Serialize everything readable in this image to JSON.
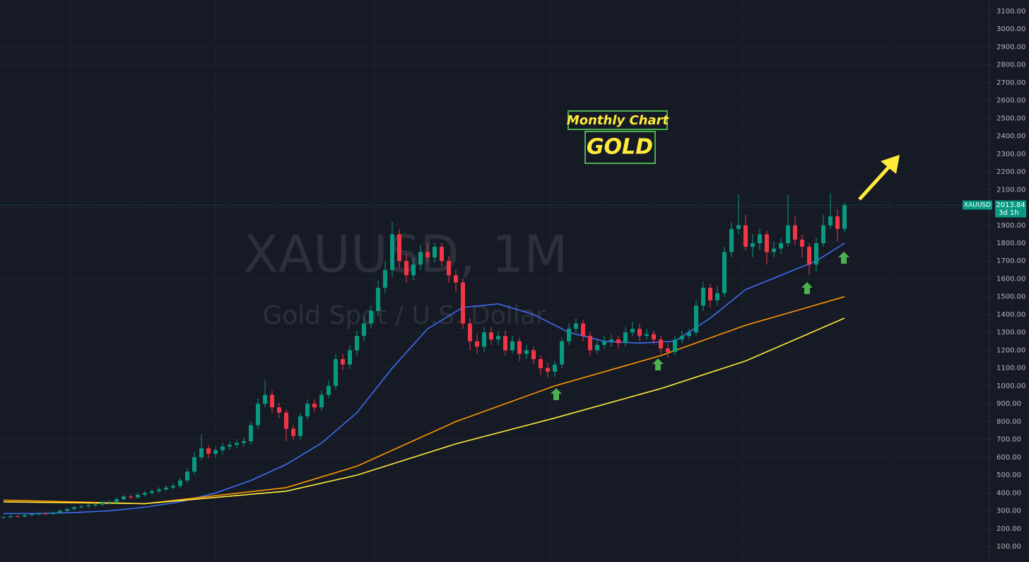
{
  "chart_data": {
    "type": "candlestick",
    "title": "XAUUSD, 1M",
    "subtitle": "Gold Spot / U.S. Dollar",
    "symbol": "XAUUSD",
    "countdown": "3d 1h",
    "annotations": [
      "Monthly Chart",
      "GOLD"
    ],
    "up_color": "#089981",
    "down_color": "#f23645",
    "grid": true,
    "xlim": [
      -0.5,
      139.5
    ],
    "ylim": [
      13,
      3163
    ],
    "yticks": [
      {
        "value": 100,
        "label": "100.00"
      },
      {
        "value": 200,
        "label": "200.00"
      },
      {
        "value": 300,
        "label": "300.00"
      },
      {
        "value": 400,
        "label": "400.00"
      },
      {
        "value": 500,
        "label": "500.00"
      },
      {
        "value": 600,
        "label": "600.00"
      },
      {
        "value": 700,
        "label": "700.00"
      },
      {
        "value": 800,
        "label": "800.00"
      },
      {
        "value": 900,
        "label": "900.00"
      },
      {
        "value": 1000,
        "label": "1000.00"
      },
      {
        "value": 1100,
        "label": "1100.00"
      },
      {
        "value": 1200,
        "label": "1200.00"
      },
      {
        "value": 1300,
        "label": "1300.00"
      },
      {
        "value": 1400,
        "label": "1400.00"
      },
      {
        "value": 1500,
        "label": "1500.00"
      },
      {
        "value": 1600,
        "label": "1600.00"
      },
      {
        "value": 1700,
        "label": "1700.00"
      },
      {
        "value": 1800,
        "label": "1800.00"
      },
      {
        "value": 1900,
        "label": "1900.00"
      },
      {
        "value": 2000,
        "label": "2000.00"
      },
      {
        "value": 2100,
        "label": "2100.00"
      },
      {
        "value": 2200,
        "label": "2200.00"
      },
      {
        "value": 2300,
        "label": "2300.00"
      },
      {
        "value": 2400,
        "label": "2400.00"
      },
      {
        "value": 2500,
        "label": "2500.00"
      },
      {
        "value": 2600,
        "label": "2600.00"
      },
      {
        "value": 2700,
        "label": "2700.00"
      },
      {
        "value": 2800,
        "label": "2800.00"
      },
      {
        "value": 2900,
        "label": "2900.00"
      },
      {
        "value": 3000,
        "label": "3000.00"
      },
      {
        "value": 3100,
        "label": "3100.00"
      }
    ],
    "candles": [
      [
        262,
        270,
        255,
        265
      ],
      [
        265,
        276,
        260,
        270
      ],
      [
        270,
        275,
        262,
        268
      ],
      [
        268,
        282,
        263,
        275
      ],
      [
        275,
        288,
        270,
        280
      ],
      [
        280,
        292,
        274,
        285
      ],
      [
        285,
        292,
        276,
        283
      ],
      [
        283,
        297,
        278,
        290
      ],
      [
        290,
        308,
        284,
        300
      ],
      [
        300,
        318,
        294,
        310
      ],
      [
        310,
        328,
        303,
        320
      ],
      [
        320,
        334,
        312,
        325
      ],
      [
        325,
        340,
        317,
        330
      ],
      [
        330,
        344,
        322,
        335
      ],
      [
        335,
        355,
        327,
        345
      ],
      [
        345,
        360,
        336,
        350
      ],
      [
        350,
        376,
        341,
        365
      ],
      [
        365,
        392,
        356,
        380
      ],
      [
        380,
        390,
        365,
        375
      ],
      [
        375,
        402,
        366,
        390
      ],
      [
        390,
        412,
        380,
        400
      ],
      [
        400,
        422,
        390,
        410
      ],
      [
        410,
        432,
        400,
        420
      ],
      [
        420,
        443,
        410,
        430
      ],
      [
        430,
        455,
        418,
        440
      ],
      [
        440,
        485,
        428,
        470
      ],
      [
        470,
        540,
        458,
        520
      ],
      [
        520,
        630,
        505,
        600
      ],
      [
        600,
        730,
        585,
        650
      ],
      [
        650,
        668,
        595,
        620
      ],
      [
        620,
        660,
        598,
        640
      ],
      [
        640,
        680,
        615,
        660
      ],
      [
        660,
        690,
        640,
        670
      ],
      [
        670,
        700,
        650,
        680
      ],
      [
        680,
        712,
        660,
        690
      ],
      [
        690,
        800,
        670,
        780
      ],
      [
        780,
        930,
        760,
        900
      ],
      [
        900,
        1030,
        880,
        950
      ],
      [
        950,
        975,
        850,
        880
      ],
      [
        880,
        905,
        820,
        850
      ],
      [
        850,
        870,
        690,
        760
      ],
      [
        760,
        780,
        700,
        720
      ],
      [
        720,
        850,
        700,
        830
      ],
      [
        830,
        925,
        810,
        900
      ],
      [
        900,
        925,
        855,
        880
      ],
      [
        880,
        975,
        860,
        950
      ],
      [
        950,
        1030,
        930,
        1000
      ],
      [
        1000,
        1180,
        980,
        1150
      ],
      [
        1150,
        1180,
        1090,
        1120
      ],
      [
        1120,
        1230,
        1095,
        1200
      ],
      [
        1200,
        1310,
        1170,
        1280
      ],
      [
        1280,
        1385,
        1250,
        1350
      ],
      [
        1350,
        1450,
        1320,
        1420
      ],
      [
        1420,
        1590,
        1390,
        1550
      ],
      [
        1550,
        1700,
        1520,
        1650
      ],
      [
        1650,
        1920,
        1610,
        1850
      ],
      [
        1850,
        1880,
        1660,
        1700
      ],
      [
        1700,
        1740,
        1580,
        1620
      ],
      [
        1620,
        1720,
        1590,
        1680
      ],
      [
        1680,
        1790,
        1650,
        1750
      ],
      [
        1750,
        1800,
        1690,
        1720
      ],
      [
        1720,
        1800,
        1690,
        1780
      ],
      [
        1780,
        1800,
        1670,
        1700
      ],
      [
        1700,
        1730,
        1580,
        1620
      ],
      [
        1620,
        1650,
        1530,
        1580
      ],
      [
        1580,
        1600,
        1320,
        1350
      ],
      [
        1350,
        1380,
        1200,
        1250
      ],
      [
        1250,
        1290,
        1180,
        1220
      ],
      [
        1220,
        1330,
        1190,
        1300
      ],
      [
        1300,
        1330,
        1230,
        1260
      ],
      [
        1260,
        1310,
        1230,
        1280
      ],
      [
        1280,
        1310,
        1170,
        1200
      ],
      [
        1200,
        1280,
        1180,
        1250
      ],
      [
        1250,
        1270,
        1140,
        1180
      ],
      [
        1180,
        1230,
        1150,
        1200
      ],
      [
        1200,
        1220,
        1120,
        1150
      ],
      [
        1150,
        1170,
        1060,
        1100
      ],
      [
        1100,
        1130,
        1045,
        1080
      ],
      [
        1080,
        1140,
        1050,
        1120
      ],
      [
        1120,
        1270,
        1100,
        1250
      ],
      [
        1250,
        1350,
        1230,
        1320
      ],
      [
        1320,
        1380,
        1300,
        1350
      ],
      [
        1350,
        1370,
        1250,
        1280
      ],
      [
        1280,
        1300,
        1170,
        1200
      ],
      [
        1200,
        1260,
        1180,
        1230
      ],
      [
        1230,
        1280,
        1210,
        1250
      ],
      [
        1250,
        1290,
        1220,
        1260
      ],
      [
        1260,
        1280,
        1210,
        1240
      ],
      [
        1240,
        1330,
        1220,
        1300
      ],
      [
        1300,
        1360,
        1280,
        1320
      ],
      [
        1320,
        1350,
        1250,
        1280
      ],
      [
        1280,
        1320,
        1260,
        1290
      ],
      [
        1290,
        1310,
        1230,
        1260
      ],
      [
        1260,
        1280,
        1180,
        1210
      ],
      [
        1210,
        1240,
        1160,
        1190
      ],
      [
        1190,
        1280,
        1170,
        1260
      ],
      [
        1260,
        1310,
        1240,
        1280
      ],
      [
        1280,
        1320,
        1260,
        1300
      ],
      [
        1300,
        1480,
        1280,
        1450
      ],
      [
        1450,
        1580,
        1420,
        1550
      ],
      [
        1550,
        1570,
        1440,
        1480
      ],
      [
        1480,
        1560,
        1450,
        1520
      ],
      [
        1520,
        1780,
        1500,
        1750
      ],
      [
        1750,
        1920,
        1720,
        1880
      ],
      [
        1880,
        2075,
        1850,
        1900
      ],
      [
        1900,
        1960,
        1760,
        1780
      ],
      [
        1780,
        1850,
        1720,
        1800
      ],
      [
        1800,
        1880,
        1760,
        1850
      ],
      [
        1850,
        1870,
        1680,
        1750
      ],
      [
        1750,
        1810,
        1720,
        1770
      ],
      [
        1770,
        1830,
        1740,
        1800
      ],
      [
        1800,
        2070,
        1780,
        1900
      ],
      [
        1900,
        1950,
        1790,
        1820
      ],
      [
        1820,
        1850,
        1720,
        1780
      ],
      [
        1780,
        1800,
        1620,
        1680
      ],
      [
        1680,
        1830,
        1640,
        1800
      ],
      [
        1800,
        1960,
        1780,
        1900
      ],
      [
        1900,
        2080,
        1880,
        1950
      ],
      [
        1950,
        1990,
        1810,
        1880
      ],
      [
        1880,
        2030,
        1860,
        2013.84
      ]
    ],
    "lines": [
      {
        "color": "#3d6cf0",
        "x": [
          0,
          5,
          10,
          15,
          20,
          25,
          30,
          35,
          40,
          45,
          50,
          55,
          60,
          65,
          70,
          75,
          80,
          85,
          90,
          95,
          100,
          105,
          110,
          115,
          119
        ],
        "values": [
          285,
          285,
          290,
          300,
          320,
          350,
          400,
          470,
          560,
          680,
          850,
          1100,
          1320,
          1440,
          1460,
          1400,
          1300,
          1250,
          1240,
          1250,
          1380,
          1540,
          1620,
          1700,
          1800
        ]
      },
      {
        "color": "#ff9800",
        "x": [
          0,
          20,
          40,
          50,
          64,
          78,
          93,
          105,
          119
        ],
        "values": [
          360,
          340,
          430,
          550,
          800,
          1000,
          1170,
          1340,
          1500
        ]
      },
      {
        "color": "#ffeb3b",
        "x": [
          0,
          20,
          40,
          50,
          64,
          78,
          93,
          105,
          119
        ],
        "values": [
          350,
          340,
          410,
          500,
          675,
          820,
          985,
          1140,
          1380
        ]
      }
    ]
  }
}
